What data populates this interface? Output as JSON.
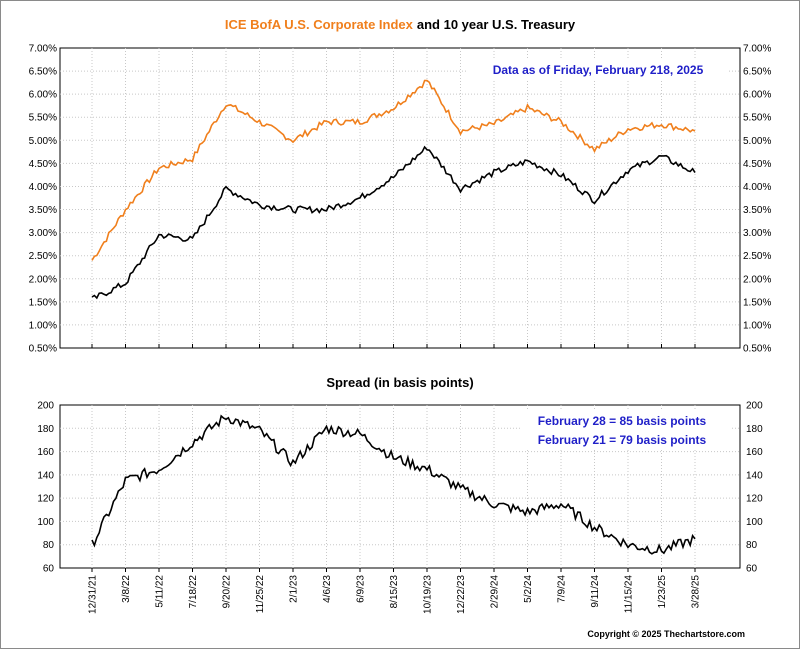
{
  "title": {
    "part1": "ICE BofA U.S. Corporate Index",
    "part2": "and 10 year U.S. Treasury"
  },
  "top_note": "Data as of Friday, February 218, 2025",
  "spread_title": "Spread (in basis points)",
  "spread_notes": [
    "February 28 = 85 basis points",
    "February 21 = 79 basis points"
  ],
  "copyright": "Copyright © 2025 Thechartstore.com",
  "colors": {
    "corporate": "#f07f1c",
    "treasury": "#000000",
    "note_blue": "#1f1fc8",
    "title_orange": "#f07f1c"
  },
  "chart_data": [
    {
      "type": "line",
      "title": "ICE BofA U.S. Corporate Index and 10 year U.S. Treasury",
      "ylim": [
        0.5,
        7.0
      ],
      "y_ticks": [
        "0.50%",
        "1.00%",
        "1.50%",
        "2.00%",
        "2.50%",
        "3.00%",
        "3.50%",
        "4.00%",
        "4.50%",
        "5.00%",
        "5.50%",
        "6.00%",
        "6.50%",
        "7.00%"
      ],
      "grid": true,
      "x": [
        "12/31/21",
        "3/8/22",
        "5/11/22",
        "7/18/22",
        "9/20/22",
        "11/25/22",
        "2/1/23",
        "4/6/23",
        "6/9/23",
        "8/15/23",
        "10/19/23",
        "12/22/23",
        "2/29/24",
        "5/2/24",
        "7/9/24",
        "9/11/24",
        "11/15/24",
        "1/23/25",
        "3/28/25"
      ],
      "series": [
        {
          "name": "ICE BofA U.S. Corporate Index",
          "values": [
            2.4,
            3.5,
            4.4,
            4.6,
            5.8,
            5.4,
            5.0,
            5.4,
            5.4,
            5.7,
            6.3,
            5.2,
            5.35,
            5.7,
            5.4,
            4.8,
            5.25,
            5.35,
            5.2
          ]
        },
        {
          "name": "10 year U.S. Treasury",
          "values": [
            1.55,
            1.9,
            2.95,
            2.85,
            3.95,
            3.6,
            3.5,
            3.5,
            3.75,
            4.2,
            4.85,
            3.95,
            4.3,
            4.55,
            4.25,
            3.7,
            4.35,
            4.65,
            4.3
          ]
        }
      ]
    },
    {
      "type": "line",
      "title": "Spread (in basis points)",
      "ylim": [
        60,
        200
      ],
      "y_ticks": [
        "60",
        "80",
        "100",
        "120",
        "140",
        "160",
        "180",
        "200"
      ],
      "grid": true,
      "x": [
        "12/31/21",
        "3/8/22",
        "5/11/22",
        "7/18/22",
        "9/20/22",
        "11/25/22",
        "2/1/23",
        "4/6/23",
        "6/9/23",
        "8/15/23",
        "10/19/23",
        "12/22/23",
        "2/29/24",
        "5/2/24",
        "7/9/24",
        "9/11/24",
        "11/15/24",
        "1/23/25",
        "3/28/25"
      ],
      "series": [
        {
          "name": "Spread",
          "values": [
            80,
            135,
            145,
            168,
            190,
            178,
            150,
            180,
            175,
            155,
            145,
            128,
            115,
            108,
            115,
            95,
            80,
            75,
            85
          ]
        }
      ]
    }
  ]
}
